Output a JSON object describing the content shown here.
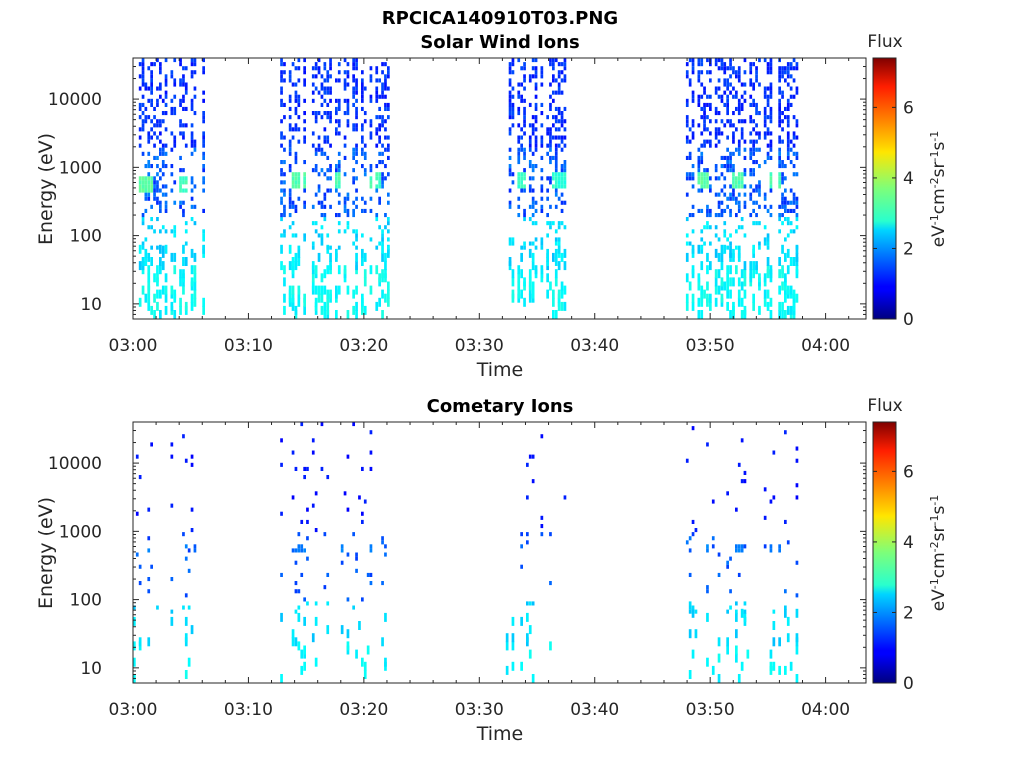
{
  "figure_title": "RPCICA140910T03.PNG",
  "chart_data": [
    {
      "type": "heatmap",
      "title": "Solar Wind Ions",
      "xlabel": "Time",
      "ylabel": "Energy (eV)",
      "x_ticks": [
        "03:00",
        "03:10",
        "03:20",
        "03:30",
        "03:40",
        "03:50",
        "04:00"
      ],
      "y_ticks": [
        "10",
        "100",
        "1000",
        "10000"
      ],
      "y_scale": "log",
      "ylim": [
        6,
        40000
      ],
      "xlim_minutes": [
        0,
        63.5
      ],
      "colorbar": {
        "label": "Flux",
        "units": "eV-1cm-2sr-1s-1",
        "ticks": [
          "0",
          "2",
          "4",
          "6"
        ],
        "range": [
          0,
          7.4
        ],
        "colormap": "jet"
      },
      "scan_bursts": [
        {
          "start_min": 0.0,
          "end_min": 6.2,
          "peaks": [
            {
              "time_min": 1.0,
              "energy_ev": 600,
              "level": 3.6
            },
            {
              "time_min": 4.2,
              "energy_ev": 600,
              "level": 3.4
            }
          ]
        },
        {
          "start_min": 12.5,
          "end_min": 22.0,
          "peaks": [
            {
              "time_min": 14.3,
              "energy_ev": 620,
              "level": 3.5
            },
            {
              "time_min": 17.6,
              "energy_ev": 620,
              "level": 3.5
            },
            {
              "time_min": 20.7,
              "energy_ev": 620,
              "level": 3.4
            }
          ]
        },
        {
          "start_min": 32.3,
          "end_min": 37.4,
          "peaks": [
            {
              "time_min": 33.5,
              "energy_ev": 650,
              "level": 3.3
            },
            {
              "time_min": 36.7,
              "energy_ev": 650,
              "level": 3.2
            }
          ]
        },
        {
          "start_min": 47.9,
          "end_min": 57.4,
          "peaks": [
            {
              "time_min": 49.2,
              "energy_ev": 620,
              "level": 3.6
            },
            {
              "time_min": 52.3,
              "energy_ev": 620,
              "level": 3.5
            },
            {
              "time_min": 55.5,
              "energy_ev": 620,
              "level": 3.5
            }
          ]
        }
      ]
    },
    {
      "type": "heatmap",
      "title": "Cometary Ions",
      "xlabel": "Time",
      "ylabel": "Energy (eV)",
      "x_ticks": [
        "03:00",
        "03:10",
        "03:20",
        "03:30",
        "03:40",
        "03:50",
        "04:00"
      ],
      "y_ticks": [
        "10",
        "100",
        "1000",
        "10000"
      ],
      "y_scale": "log",
      "ylim": [
        6,
        40000
      ],
      "xlim_minutes": [
        0,
        63.5
      ],
      "colorbar": {
        "label": "Flux",
        "units": "eV-1cm-2sr-1s-1",
        "ticks": [
          "0",
          "2",
          "4",
          "6"
        ],
        "range": [
          0,
          7.4
        ],
        "colormap": "jet"
      },
      "scan_bursts": [
        {
          "start_min": 0.0,
          "end_min": 6.2,
          "peaks": [
            {
              "time_min": 1.0,
              "energy_ev": 560,
              "level": 2.1
            },
            {
              "time_min": 4.2,
              "energy_ev": 560,
              "level": 2.0
            }
          ]
        },
        {
          "start_min": 12.5,
          "end_min": 22.0,
          "peaks": [
            {
              "time_min": 14.3,
              "energy_ev": 560,
              "level": 2.0
            },
            {
              "time_min": 17.6,
              "energy_ev": 560,
              "level": 2.0
            },
            {
              "time_min": 20.7,
              "energy_ev": 560,
              "level": 2.0
            }
          ]
        },
        {
          "start_min": 32.3,
          "end_min": 37.4,
          "peaks": [
            {
              "time_min": 33.5,
              "energy_ev": 560,
              "level": 1.9
            },
            {
              "time_min": 36.7,
              "energy_ev": 560,
              "level": 1.9
            }
          ]
        },
        {
          "start_min": 47.9,
          "end_min": 57.4,
          "peaks": [
            {
              "time_min": 49.2,
              "energy_ev": 560,
              "level": 2.1
            },
            {
              "time_min": 52.3,
              "energy_ev": 560,
              "level": 2.0
            },
            {
              "time_min": 55.5,
              "energy_ev": 560,
              "level": 2.0
            }
          ]
        }
      ]
    }
  ]
}
